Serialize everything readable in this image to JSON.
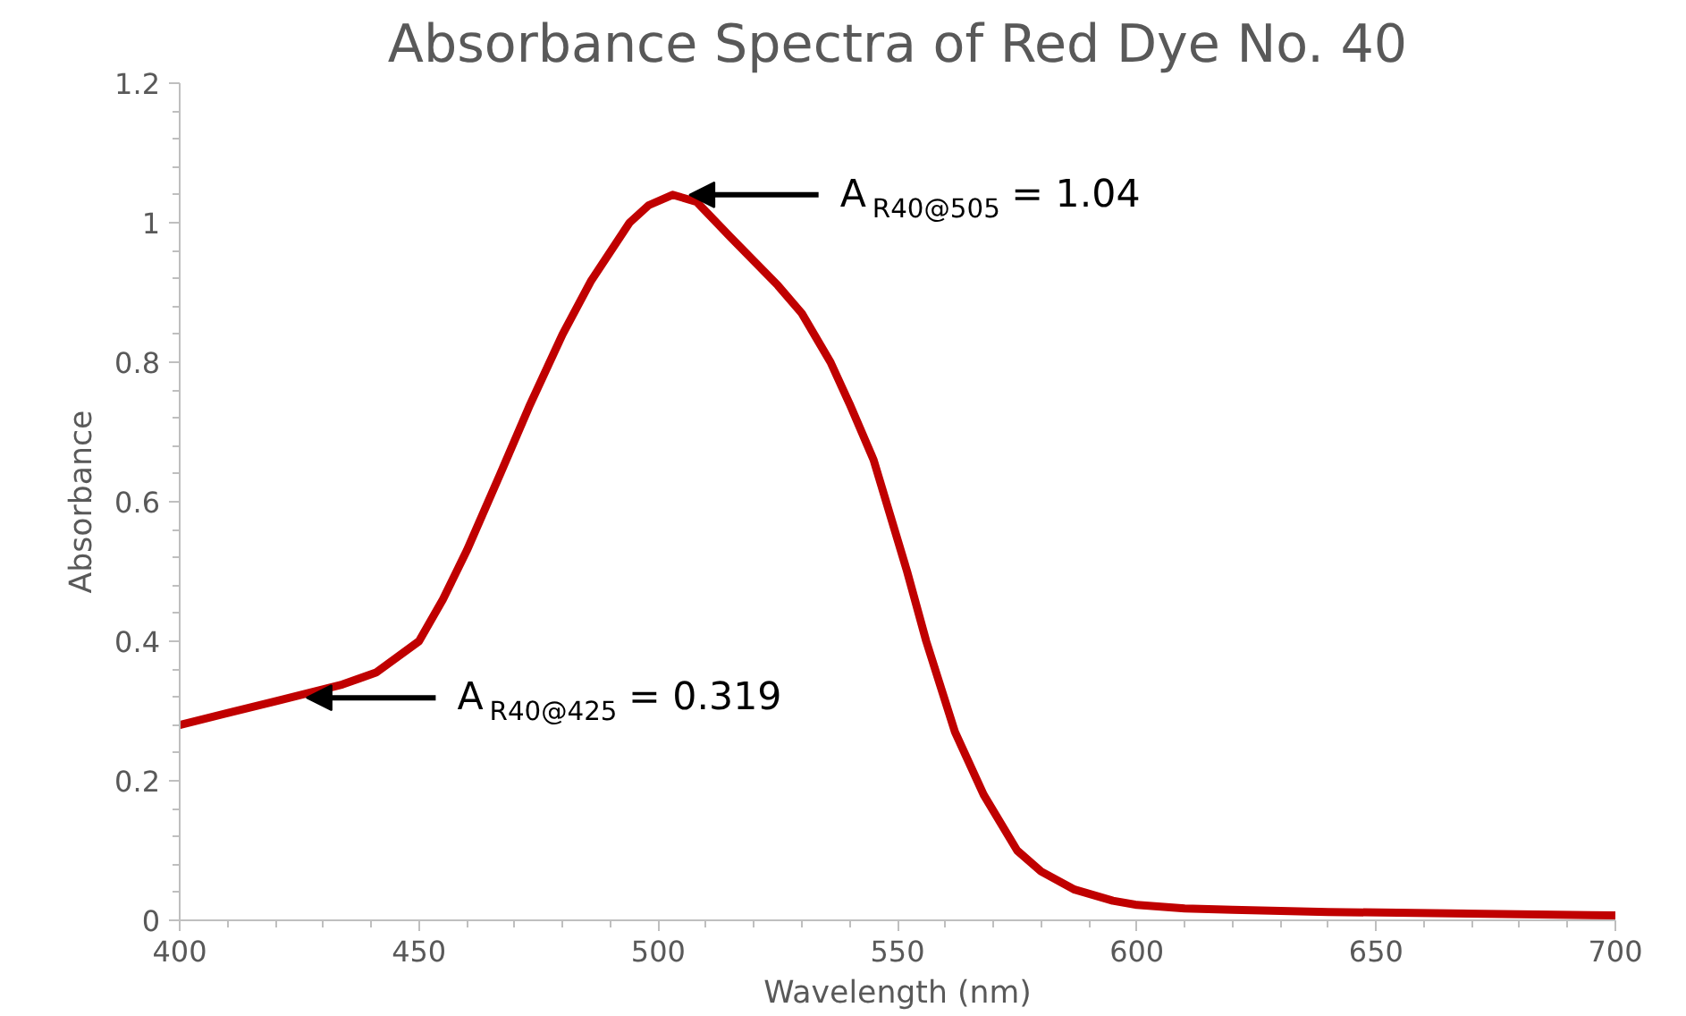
{
  "chart_data": {
    "type": "line",
    "title": "Absorbance Spectra of Red Dye No. 40",
    "xlabel": "Wavelength (nm)",
    "ylabel": "Absorbance",
    "x": [
      400,
      420,
      434,
      441,
      450,
      455,
      460,
      467,
      473,
      480,
      486,
      494,
      498,
      503,
      508,
      515,
      525,
      530,
      536,
      540,
      545,
      552,
      556,
      562,
      568,
      575,
      580,
      587,
      595,
      600,
      610,
      620,
      640,
      700
    ],
    "series": [
      {
        "color": "#c00000",
        "values": [
          0.28,
          0.314,
          0.338,
          0.355,
          0.4,
          0.46,
          0.53,
          0.64,
          0.736,
          0.84,
          0.917,
          1.0,
          1.025,
          1.04,
          1.03,
          0.98,
          0.91,
          0.87,
          0.8,
          0.74,
          0.66,
          0.5,
          0.4,
          0.27,
          0.18,
          0.1,
          0.07,
          0.044,
          0.028,
          0.022,
          0.017,
          0.015,
          0.012,
          0.007
        ]
      }
    ],
    "xlim": [
      400,
      700
    ],
    "xticks": [
      400,
      450,
      500,
      550,
      600,
      650,
      700
    ],
    "ylim": [
      0,
      1.2
    ],
    "yticks": [
      0,
      0.2,
      0.4,
      0.6,
      0.8,
      1,
      1.2
    ],
    "grid": false,
    "marker": "none",
    "line_style": "solid",
    "annotations": [
      {
        "text": "A$_{R40@505}$ = 1.04",
        "x": 505,
        "y": 1.04
      },
      {
        "text": "A$_{R40@425}$ = 0.319",
        "x": 425,
        "y": 0.319
      }
    ]
  }
}
